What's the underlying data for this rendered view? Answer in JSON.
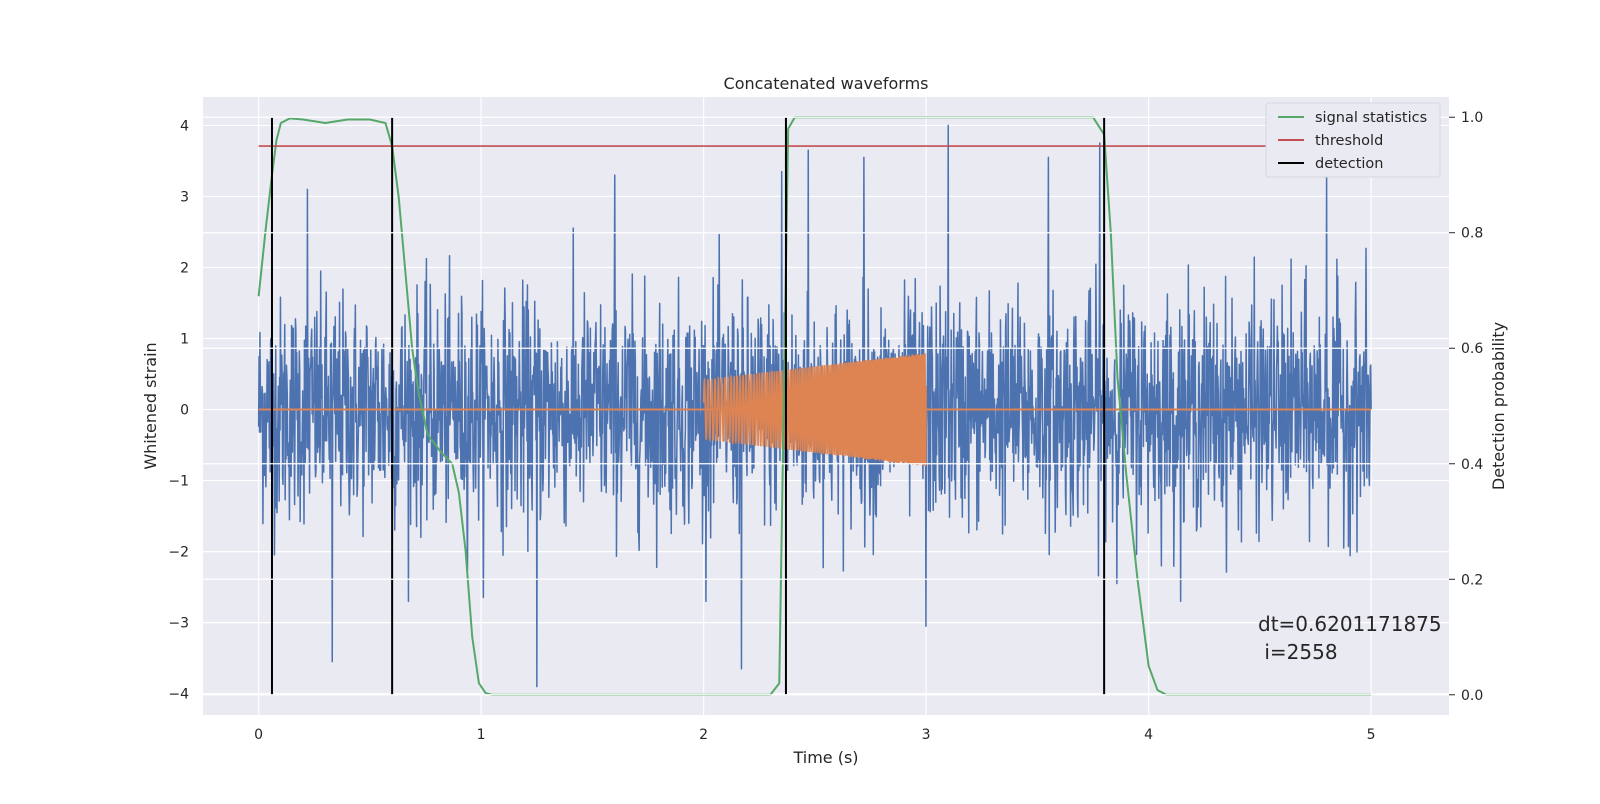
{
  "chart_data": {
    "type": "line",
    "title": "Concatenated waveforms",
    "xlabel": "Time (s)",
    "ylabel": "Whitened strain",
    "y2label": "Detection probability",
    "xlim": [
      -0.25,
      5.35
    ],
    "ylim": [
      -4.3,
      4.4
    ],
    "y2lim": [
      -0.035,
      1.035
    ],
    "xticks": [
      0,
      1,
      2,
      3,
      4,
      5
    ],
    "yticks": [
      -4,
      -3,
      -2,
      -1,
      0,
      1,
      2,
      3,
      4
    ],
    "y2ticks": [
      0.0,
      0.2,
      0.4,
      0.6,
      0.8,
      1.0
    ],
    "y2tick_labels": [
      "0.0",
      "0.2",
      "0.4",
      "0.6",
      "0.8",
      "1.0"
    ],
    "grid": true,
    "legend_position": "top-right",
    "legend": [
      "signal statistics",
      "threshold",
      "detection"
    ],
    "colors": {
      "background": "#eaeaf2",
      "grid": "#ffffff",
      "strain": "#4c72b0",
      "waveform": "#dd8452",
      "signal_statistics": "#55a868",
      "threshold": "#c44e52",
      "detection": "#000000"
    },
    "strain_noise": {
      "x_range": [
        0,
        5
      ],
      "typical_range": [
        -2.3,
        2.3
      ],
      "max": 4.0,
      "min": -3.9,
      "notable_peaks": [
        {
          "x": 0.22,
          "y": 3.1
        },
        {
          "x": 1.6,
          "y": 3.3
        },
        {
          "x": 2.35,
          "y": 3.35
        },
        {
          "x": 2.47,
          "y": 3.65
        },
        {
          "x": 2.72,
          "y": 3.55
        },
        {
          "x": 3.1,
          "y": 4.0
        },
        {
          "x": 3.55,
          "y": 3.55
        },
        {
          "x": 3.78,
          "y": 3.75
        },
        {
          "x": 4.8,
          "y": 3.4
        },
        {
          "x": 1.25,
          "y": -3.9
        },
        {
          "x": 0.33,
          "y": -3.55
        },
        {
          "x": 2.17,
          "y": -3.65
        },
        {
          "x": 3.0,
          "y": -3.05
        }
      ]
    },
    "waveform": {
      "x_range": [
        2.0,
        3.0
      ],
      "amplitude_start": 0.42,
      "amplitude_end": 0.8,
      "frequency_start_hz": 60,
      "frequency_end_hz": 160
    },
    "signal_statistics": {
      "x": [
        0.0,
        0.03,
        0.06,
        0.08,
        0.1,
        0.14,
        0.2,
        0.3,
        0.4,
        0.5,
        0.57,
        0.6,
        0.63,
        0.66,
        0.69,
        0.72,
        0.76,
        0.82,
        0.87,
        0.9,
        0.93,
        0.96,
        0.99,
        1.02,
        1.05,
        1.1,
        1.5,
        2.0,
        2.3,
        2.34,
        2.36,
        2.38,
        2.41,
        2.45,
        3.0,
        3.5,
        3.75,
        3.8,
        3.83,
        3.86,
        3.9,
        3.95,
        4.0,
        4.04,
        4.08,
        4.2,
        5.0
      ],
      "y": [
        0.69,
        0.8,
        0.9,
        0.96,
        0.99,
        0.998,
        0.996,
        0.99,
        0.996,
        0.996,
        0.99,
        0.95,
        0.86,
        0.73,
        0.6,
        0.52,
        0.45,
        0.42,
        0.4,
        0.35,
        0.25,
        0.1,
        0.02,
        0.003,
        0.0,
        0.0,
        0.0,
        0.0,
        0.0,
        0.02,
        0.5,
        0.98,
        1.0,
        1.0,
        1.0,
        1.0,
        1.0,
        0.97,
        0.8,
        0.55,
        0.38,
        0.2,
        0.05,
        0.008,
        0.0,
        0.0,
        0.0
      ]
    },
    "threshold": {
      "x": [
        0,
        5.1
      ],
      "value": 0.95
    },
    "detections": [
      0.06,
      0.6,
      2.37,
      3.8
    ],
    "annotation": {
      "line1": "dt=0.6201171875",
      "line2": " i=2558",
      "x": 4.5,
      "y": -3.0
    }
  }
}
